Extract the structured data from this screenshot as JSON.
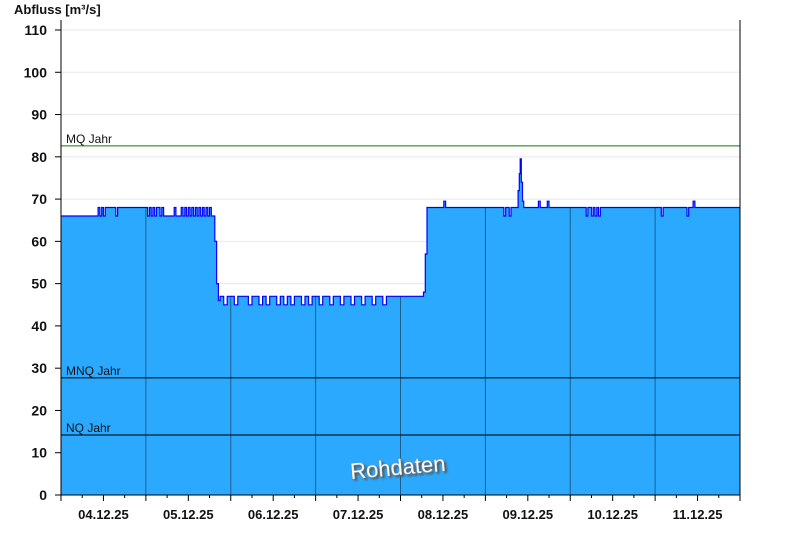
{
  "chart_data": {
    "type": "area",
    "title": "",
    "ylabel": "Abfluss [m³/s]",
    "xlabel": "",
    "ylim": [
      0,
      110
    ],
    "yticks": [
      0,
      10,
      20,
      30,
      40,
      50,
      60,
      70,
      80,
      90,
      100,
      110
    ],
    "xlim": [
      "04.12.25 00:00",
      "12.12.25 00:00"
    ],
    "xtick_labels": [
      "04.12.25",
      "05.12.25",
      "06.12.25",
      "07.12.25",
      "08.12.25",
      "09.12.25",
      "10.12.25",
      "11.12.25"
    ],
    "grid": true,
    "watermark": "Rohdaten",
    "colors": {
      "fill": "#2aa9ff",
      "line": "#0000ff",
      "mq": "#008000",
      "reference": "#000000",
      "grid": "#e8e8e8",
      "day_lines": "#1d5f8a"
    },
    "reference_lines": [
      {
        "label": "MQ Jahr",
        "value": 82.6,
        "color": "#008000"
      },
      {
        "label": "MNQ Jahr",
        "value": 27.7,
        "color": "#000000"
      },
      {
        "label": "NQ Jahr",
        "value": 14.2,
        "color": "#000000"
      }
    ],
    "series": [
      {
        "points": [
          [
            "04.12.25 00:00",
            66
          ],
          [
            "04.12.25 10:30",
            68
          ],
          [
            "04.12.25 11:00",
            66
          ],
          [
            "04.12.25 11:30",
            68
          ],
          [
            "04.12.25 12:00",
            66
          ],
          [
            "04.12.25 12:30",
            68
          ],
          [
            "04.12.25 15:30",
            66
          ],
          [
            "04.12.25 16:00",
            68
          ],
          [
            "05.12.25 00:30",
            66
          ],
          [
            "05.12.25 01:00",
            68
          ],
          [
            "05.12.25 01:30",
            66
          ],
          [
            "05.12.25 02:00",
            68
          ],
          [
            "05.12.25 02:30",
            66
          ],
          [
            "05.12.25 03:00",
            68
          ],
          [
            "05.12.25 04:00",
            66
          ],
          [
            "05.12.25 04:30",
            68
          ],
          [
            "05.12.25 05:00",
            66
          ],
          [
            "05.12.25 08:00",
            68
          ],
          [
            "05.12.25 08:30",
            66
          ],
          [
            "05.12.25 10:00",
            68
          ],
          [
            "05.12.25 10:30",
            66
          ],
          [
            "05.12.25 11:00",
            68
          ],
          [
            "05.12.25 11:30",
            66
          ],
          [
            "05.12.25 12:00",
            68
          ],
          [
            "05.12.25 12:30",
            66
          ],
          [
            "05.12.25 13:00",
            68
          ],
          [
            "05.12.25 13:30",
            66
          ],
          [
            "05.12.25 14:00",
            68
          ],
          [
            "05.12.25 14:30",
            66
          ],
          [
            "05.12.25 15:00",
            68
          ],
          [
            "05.12.25 15:30",
            66
          ],
          [
            "05.12.25 16:00",
            68
          ],
          [
            "05.12.25 16:30",
            66
          ],
          [
            "05.12.25 17:00",
            68
          ],
          [
            "05.12.25 17:30",
            66
          ],
          [
            "05.12.25 18:00",
            68
          ],
          [
            "05.12.25 18:30",
            66
          ],
          [
            "05.12.25 19:30",
            60
          ],
          [
            "05.12.25 20:00",
            50
          ],
          [
            "05.12.25 20:30",
            46
          ],
          [
            "05.12.25 21:00",
            47
          ],
          [
            "05.12.25 22:00",
            45
          ],
          [
            "05.12.25 23:00",
            47
          ],
          [
            "06.12.25 01:00",
            45
          ],
          [
            "06.12.25 02:00",
            47
          ],
          [
            "06.12.25 05:00",
            45
          ],
          [
            "06.12.25 06:00",
            47
          ],
          [
            "06.12.25 08:00",
            45
          ],
          [
            "06.12.25 09:00",
            47
          ],
          [
            "06.12.25 10:00",
            45
          ],
          [
            "06.12.25 11:00",
            47
          ],
          [
            "06.12.25 13:00",
            45
          ],
          [
            "06.12.25 14:00",
            47
          ],
          [
            "06.12.25 15:00",
            45
          ],
          [
            "06.12.25 16:00",
            47
          ],
          [
            "06.12.25 17:00",
            45
          ],
          [
            "06.12.25 18:00",
            47
          ],
          [
            "06.12.25 20:00",
            45
          ],
          [
            "06.12.25 21:00",
            47
          ],
          [
            "06.12.25 22:00",
            45
          ],
          [
            "06.12.25 23:00",
            47
          ],
          [
            "07.12.25 01:00",
            45
          ],
          [
            "07.12.25 02:00",
            47
          ],
          [
            "07.12.25 04:00",
            45
          ],
          [
            "07.12.25 05:00",
            47
          ],
          [
            "07.12.25 07:00",
            45
          ],
          [
            "07.12.25 08:00",
            47
          ],
          [
            "07.12.25 10:00",
            45
          ],
          [
            "07.12.25 11:00",
            47
          ],
          [
            "07.12.25 13:00",
            45
          ],
          [
            "07.12.25 14:00",
            47
          ],
          [
            "07.12.25 16:00",
            45
          ],
          [
            "07.12.25 17:00",
            47
          ],
          [
            "07.12.25 19:00",
            45
          ],
          [
            "07.12.25 20:00",
            47
          ],
          [
            "08.12.25 06:30",
            48
          ],
          [
            "08.12.25 07:00",
            57
          ],
          [
            "08.12.25 07:30",
            68
          ],
          [
            "08.12.25 12:15",
            69.5
          ],
          [
            "08.12.25 12:45",
            68
          ],
          [
            "09.12.25 05:15",
            66
          ],
          [
            "09.12.25 05:45",
            68
          ],
          [
            "09.12.25 06:45",
            66
          ],
          [
            "09.12.25 07:15",
            68
          ],
          [
            "09.12.25 09:15",
            72
          ],
          [
            "09.12.25 09:35",
            76
          ],
          [
            "09.12.25 09:50",
            79.5
          ],
          [
            "09.12.25 10:10",
            74
          ],
          [
            "09.12.25 10:30",
            69.5
          ],
          [
            "09.12.25 10:50",
            68
          ],
          [
            "09.12.25 15:00",
            69.5
          ],
          [
            "09.12.25 15:30",
            68
          ],
          [
            "09.12.25 17:30",
            69.5
          ],
          [
            "09.12.25 18:00",
            68
          ],
          [
            "10.12.25 04:30",
            66
          ],
          [
            "10.12.25 05:00",
            68
          ],
          [
            "10.12.25 06:00",
            66
          ],
          [
            "10.12.25 06:30",
            68
          ],
          [
            "10.12.25 07:00",
            66
          ],
          [
            "10.12.25 07:30",
            68
          ],
          [
            "10.12.25 08:00",
            66
          ],
          [
            "10.12.25 08:30",
            68
          ],
          [
            "11.12.25 01:45",
            66
          ],
          [
            "11.12.25 02:15",
            68
          ],
          [
            "11.12.25 09:00",
            66
          ],
          [
            "11.12.25 09:30",
            68
          ],
          [
            "11.12.25 10:45",
            69.5
          ],
          [
            "11.12.25 11:15",
            68
          ],
          [
            "12.12.25 00:00",
            68
          ]
        ]
      }
    ]
  }
}
